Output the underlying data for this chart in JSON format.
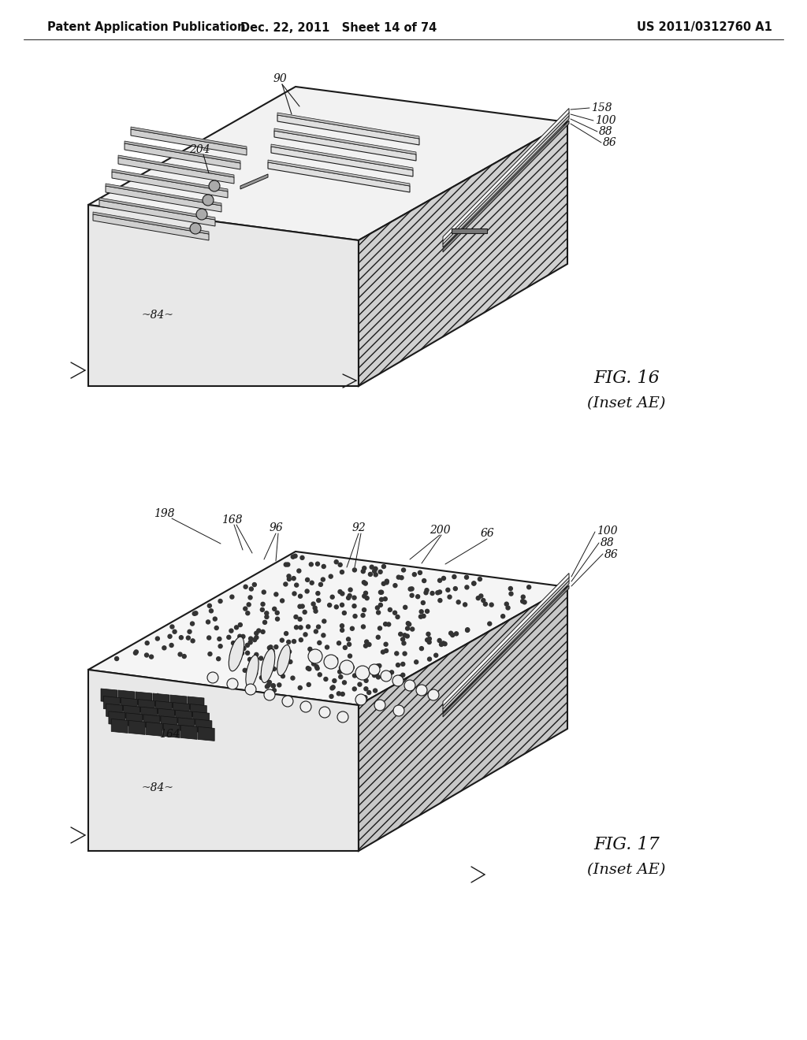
{
  "background_color": "#ffffff",
  "header_left": "Patent Application Publication",
  "header_center": "Dec. 22, 2011   Sheet 14 of 74",
  "header_right": "US 2011/0312760 A1",
  "line_color": "#1a1a1a",
  "text_color": "#111111",
  "fig16_title": "FIG. 16",
  "fig16_subtitle": "(Inset AE)",
  "fig17_title": "FIG. 17",
  "fig17_subtitle": "(Inset AE)"
}
